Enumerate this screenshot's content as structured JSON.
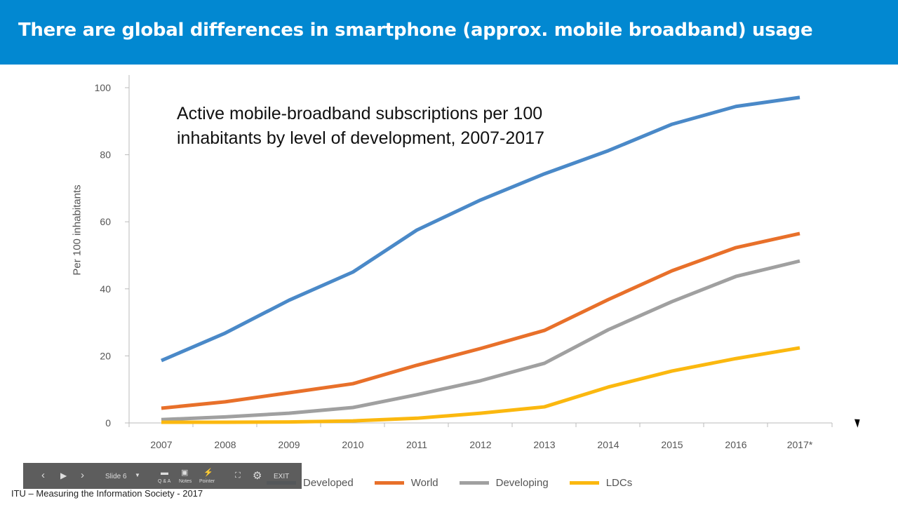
{
  "header": {
    "title": "There are global differences in smartphone (approx. mobile broadband) usage"
  },
  "chart_data": {
    "type": "line",
    "title": "Active mobile-broadband subscriptions per 100 inhabitants by level of development, 2007-2017",
    "title_lines": [
      "Active mobile-broadband subscriptions per 100",
      "inhabitants by level of development, 2007-2017"
    ],
    "xlabel": "",
    "ylabel": "Per 100 inhabitants",
    "categories": [
      "2007",
      "2008",
      "2009",
      "2010",
      "2011",
      "2012",
      "2013",
      "2014",
      "2015",
      "2016",
      "2017*"
    ],
    "yticks": [
      "0",
      "20",
      "40",
      "60",
      "80",
      "100"
    ],
    "ylim": [
      0,
      100
    ],
    "grid": false,
    "legend": "bottom",
    "series": [
      {
        "name": "Developed",
        "color": "#4a89c8",
        "values": [
          18.6,
          26.8,
          36.6,
          45.0,
          57.5,
          66.5,
          74.3,
          81.2,
          89.1,
          94.4,
          97.1
        ]
      },
      {
        "name": "World",
        "color": "#e8702a",
        "values": [
          4.4,
          6.3,
          9.0,
          11.7,
          17.2,
          22.2,
          27.6,
          36.8,
          45.4,
          52.3,
          56.5
        ]
      },
      {
        "name": "Developing",
        "color": "#a0a0a0",
        "values": [
          1.0,
          1.8,
          2.9,
          4.6,
          8.4,
          12.6,
          17.8,
          27.8,
          36.2,
          43.7,
          48.3
        ]
      },
      {
        "name": "LDCs",
        "color": "#fbb80f",
        "values": [
          0.2,
          0.2,
          0.3,
          0.6,
          1.4,
          2.9,
          4.8,
          10.7,
          15.5,
          19.2,
          22.4
        ]
      }
    ]
  },
  "toolbar": {
    "slide": "Slide 6",
    "qa": "Q & A",
    "notes": "Notes",
    "pointer": "Pointer",
    "exit": "EXIT"
  },
  "footer": "ITU – Measuring the Information Society - 2017"
}
